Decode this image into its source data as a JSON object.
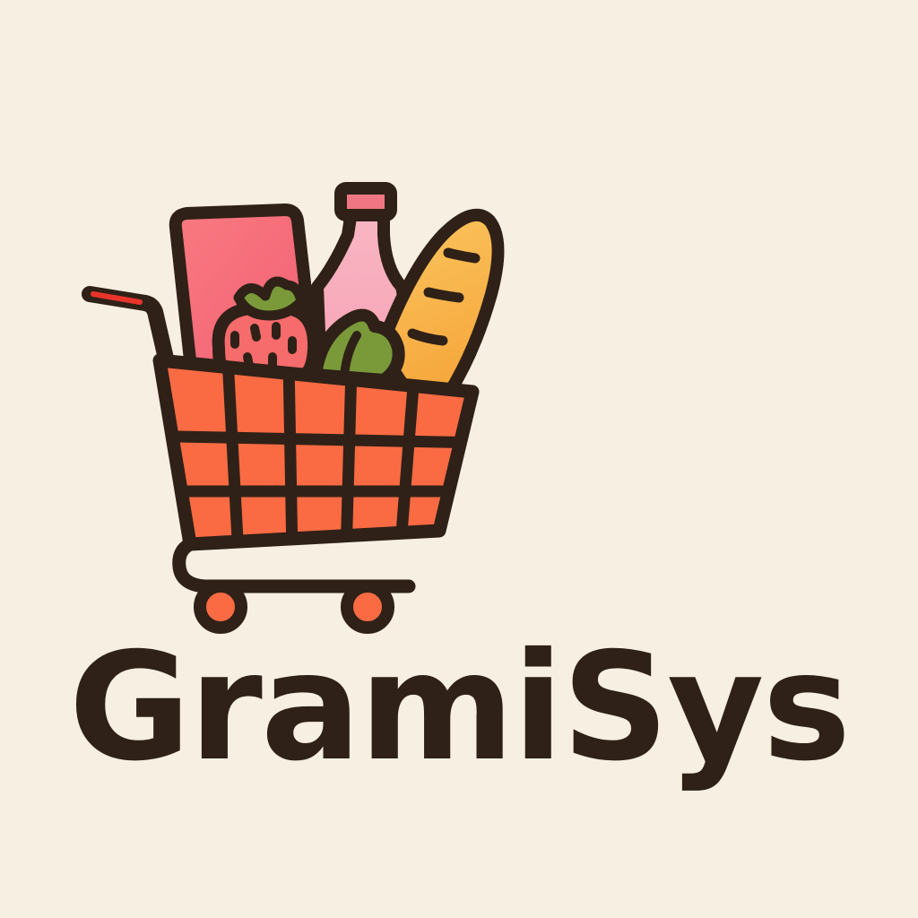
{
  "brand": {
    "name": "GramiSys"
  },
  "logo": {
    "icon": "shopping-cart-with-groceries-icon",
    "items": [
      "box-icon",
      "bottle-icon",
      "strawberry-icon",
      "lettuce-icon",
      "baguette-icon"
    ]
  },
  "colors": {
    "background": "#F7EFE1",
    "outline": "#2F2117",
    "cart": "#FA6B43",
    "box": "#F76F79",
    "bottle": "#F9B0BF",
    "bottle_cap": "#F07683",
    "strawberry": "#F66B6B",
    "leaf": "#7A9A3A",
    "bread": "#F9B64F",
    "handle_grip": "#E8342B"
  }
}
